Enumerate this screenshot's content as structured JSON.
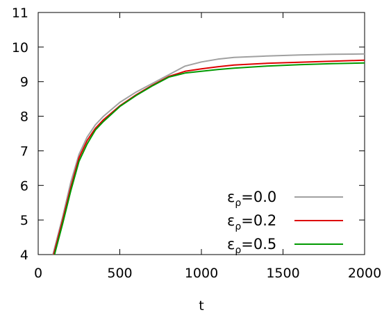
{
  "chart_data": {
    "type": "line",
    "title": "",
    "xlabel": "t",
    "ylabel": "",
    "xlim": [
      0,
      2000
    ],
    "ylim": [
      4,
      11
    ],
    "xticks": [
      "0",
      "500",
      "1000",
      "1500",
      "2000"
    ],
    "yticks": [
      "4",
      "5",
      "6",
      "7",
      "8",
      "9",
      "10",
      "11"
    ],
    "grid": false,
    "legend_position": "bottom-right",
    "series": [
      {
        "name": "ερ=0.0",
        "name_base": "ε",
        "name_sub": "ρ",
        "name_rest": "=0.0",
        "color": "#a0a0a0",
        "x": [
          90,
          150,
          200,
          250,
          300,
          350,
          400,
          500,
          600,
          700,
          800,
          900,
          1000,
          1100,
          1200,
          1400,
          1600,
          1800,
          2000
        ],
        "y": [
          4.0,
          5.1,
          6.1,
          6.9,
          7.4,
          7.75,
          8.0,
          8.4,
          8.7,
          8.95,
          9.2,
          9.45,
          9.57,
          9.65,
          9.7,
          9.74,
          9.77,
          9.79,
          9.8
        ]
      },
      {
        "name": "ερ=0.2",
        "name_base": "ε",
        "name_sub": "ρ",
        "name_rest": "=0.2",
        "color": "#dd0000",
        "x": [
          95,
          150,
          200,
          250,
          300,
          350,
          400,
          500,
          600,
          700,
          800,
          900,
          1000,
          1100,
          1200,
          1400,
          1600,
          1800,
          2000
        ],
        "y": [
          4.0,
          5.0,
          5.95,
          6.8,
          7.3,
          7.65,
          7.9,
          8.3,
          8.62,
          8.9,
          9.15,
          9.3,
          9.37,
          9.43,
          9.48,
          9.53,
          9.56,
          9.59,
          9.62
        ]
      },
      {
        "name": "ερ=0.5",
        "name_base": "ε",
        "name_sub": "ρ",
        "name_rest": "=0.5",
        "color": "#009900",
        "x": [
          100,
          150,
          200,
          250,
          300,
          350,
          400,
          500,
          600,
          700,
          800,
          900,
          1000,
          1100,
          1200,
          1400,
          1600,
          1800,
          2000
        ],
        "y": [
          4.0,
          4.9,
          5.85,
          6.7,
          7.2,
          7.6,
          7.85,
          8.28,
          8.6,
          8.88,
          9.13,
          9.25,
          9.3,
          9.35,
          9.39,
          9.45,
          9.49,
          9.52,
          9.54
        ]
      }
    ]
  }
}
